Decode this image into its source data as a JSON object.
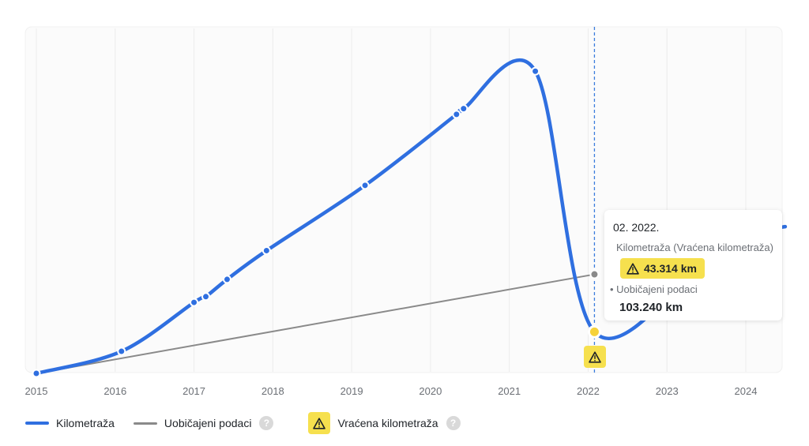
{
  "chart_data": {
    "type": "line",
    "x_ticks": [
      "2015",
      "2016",
      "2017",
      "2018",
      "2019",
      "2020",
      "2021",
      "2022",
      "2023",
      "2024"
    ],
    "series": [
      {
        "name": "Kilometraža",
        "color": "#2f6fe0",
        "points": [
          [
            2015.0,
            0
          ],
          [
            2016.08,
            23000
          ],
          [
            2017.0,
            74000
          ],
          [
            2017.15,
            80000
          ],
          [
            2017.42,
            98000
          ],
          [
            2017.92,
            128000
          ],
          [
            2019.17,
            196000
          ],
          [
            2020.33,
            270000
          ],
          [
            2020.42,
            276000
          ],
          [
            2021.33,
            315000
          ],
          [
            2022.08,
            43314
          ],
          [
            2023.5,
            120000
          ],
          [
            2024.08,
            150000
          ],
          [
            2024.33,
            151000
          ],
          [
            2024.5,
            153000
          ]
        ]
      },
      {
        "name": "Uobičajeni podaci",
        "color": "#8a8a8a",
        "points": [
          [
            2015.0,
            0
          ],
          [
            2022.08,
            103240
          ]
        ]
      }
    ],
    "highlight_x": 2022.08,
    "ylim": [
      0,
      330000
    ],
    "legend_position": "bottom-left"
  },
  "tooltip": {
    "date": "02. 2022.",
    "series1_label": "Kilometraža (Vraćena kilometraža)",
    "series1_value": "43.314 km",
    "series2_label": "• Uobičajeni podaci",
    "series2_value": "103.240 km"
  },
  "legend": {
    "item1": "Kilometraža",
    "item2": "Uobičajeni podaci",
    "item3": "Vraćena kilometraža"
  },
  "help_glyph": "?",
  "colors": {
    "accent": "#2f6fe0",
    "warning": "#f6e04e",
    "typical": "#8a8a8a"
  }
}
